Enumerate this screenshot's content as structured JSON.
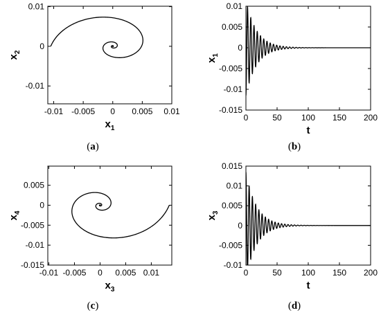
{
  "chart_data": [
    {
      "id": "a",
      "type": "line",
      "caption_letter": "a",
      "xlabel_base": "x",
      "xlabel_sub": "1",
      "ylabel_base": "x",
      "ylabel_sub": "2",
      "xlim": [
        -0.011,
        0.01
      ],
      "ylim": [
        -0.0145,
        0.0101
      ],
      "xticks": [
        -0.01,
        -0.005,
        0,
        0.005,
        0.01
      ],
      "xticklabels": [
        "-0.01",
        "-0.005",
        "0",
        "0.005",
        "0.01"
      ],
      "yticks": [
        -0.01,
        0,
        0.01
      ],
      "yticklabels": [
        "-0.01",
        "0",
        "0.01"
      ],
      "series": [
        {
          "kind": "phase_spiral",
          "x0": -0.0115,
          "y0": 0.0,
          "decay": 0.3,
          "xscale": 1.0,
          "yscale": 0.98,
          "xshift": 0.001,
          "yshift": 0.0
        }
      ]
    },
    {
      "id": "b",
      "type": "line",
      "caption_letter": "b",
      "xlabel_base": "t",
      "xlabel_sub": "",
      "ylabel_base": "x",
      "ylabel_sub": "1",
      "xlim": [
        0,
        200
      ],
      "ylim": [
        -0.015,
        0.01
      ],
      "xticks": [
        0,
        50,
        100,
        150,
        200
      ],
      "xticklabels": [
        "0",
        "50",
        "100",
        "150",
        "200"
      ],
      "yticks": [
        -0.015,
        -0.01,
        -0.005,
        0,
        0.005,
        0.01
      ],
      "yticklabels": [
        "-0.015",
        "-0.01",
        "-0.005",
        "0",
        "0.005",
        "0.01"
      ],
      "series": [
        {
          "kind": "damped_time",
          "amplitude": -0.0115,
          "period": 5.2,
          "tau": 17,
          "t_end": 200
        }
      ]
    },
    {
      "id": "c",
      "type": "line",
      "caption_letter": "c",
      "xlabel_base": "x",
      "xlabel_sub": "3",
      "ylabel_base": "x",
      "ylabel_sub": "4",
      "xlim": [
        -0.0102,
        0.014
      ],
      "ylim": [
        -0.015,
        0.0098
      ],
      "xticks": [
        -0.01,
        -0.005,
        0,
        0.005,
        0.01
      ],
      "xticklabels": [
        "-0.01",
        "-0.005",
        "0",
        "0.005",
        "0.01"
      ],
      "yticks": [
        -0.015,
        -0.01,
        -0.005,
        0,
        0.005
      ],
      "yticklabels": [
        "-0.015",
        "-0.01",
        "-0.005",
        "0",
        "0.005"
      ],
      "series": [
        {
          "kind": "phase_spiral",
          "x0": 0.0135,
          "y0": 0.0,
          "decay": 0.3,
          "xscale": 1.0,
          "yscale": 0.93,
          "xshift": 0.0,
          "yshift": 0.0
        }
      ]
    },
    {
      "id": "d",
      "type": "line",
      "caption_letter": "d",
      "xlabel_base": "t",
      "xlabel_sub": "",
      "ylabel_base": "x",
      "ylabel_sub": "3",
      "xlim": [
        0,
        200
      ],
      "ylim": [
        -0.01,
        0.015
      ],
      "xticks": [
        0,
        50,
        100,
        150,
        200
      ],
      "xticklabels": [
        "0",
        "50",
        "100",
        "150",
        "200"
      ],
      "yticks": [
        -0.01,
        -0.005,
        0,
        0.005,
        0.01,
        0.015
      ],
      "yticklabels": [
        "-0.01",
        "-0.005",
        "0",
        "0.005",
        "0.01",
        "0.015"
      ],
      "series": [
        {
          "kind": "damped_time",
          "amplitude": 0.0135,
          "period": 5.2,
          "tau": 17,
          "t_end": 200
        }
      ]
    }
  ]
}
